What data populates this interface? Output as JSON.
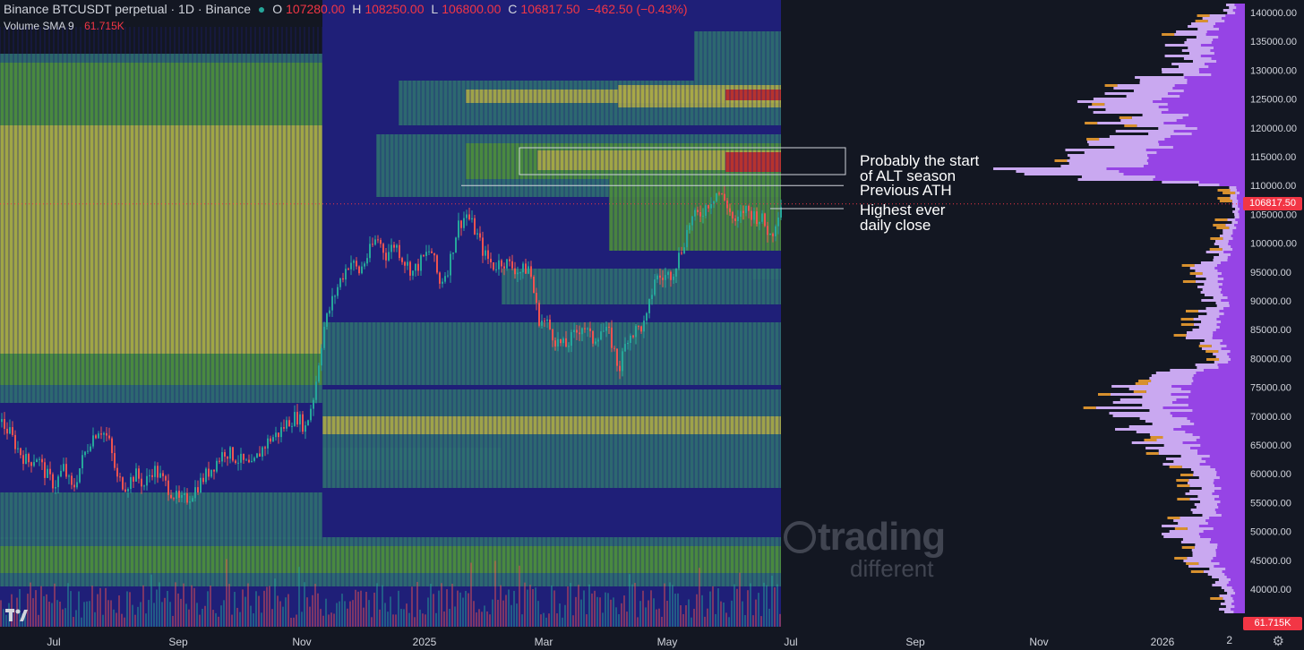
{
  "header": {
    "symbol": "Binance BTCUSDT perpetual · 1D · Binance",
    "o_label": "O",
    "o_value": "107280.00",
    "h_label": "H",
    "h_value": "108250.00",
    "l_label": "L",
    "l_value": "106800.00",
    "c_label": "C",
    "c_value": "106817.50",
    "change": "−462.50 (−0.43%)",
    "status_color": "#26a69a"
  },
  "indicator": {
    "name": "Volume SMA 9",
    "value": "61.715K"
  },
  "price_badge": "106817.50",
  "volume_badge": "61.715K",
  "watermark": {
    "line1": "trading",
    "line2": "different"
  },
  "annotations": {
    "alt_season_line1": "Probably the start",
    "alt_season_line2": "of ALT season",
    "previous_ath": "Previous ATH",
    "daily_close_line1": "Highest ever",
    "daily_close_line2": "daily close"
  },
  "colors": {
    "background": "#131722",
    "heatmap_base": "#1f1f78",
    "heatmap_teal": "#2f6f70",
    "heatmap_green": "#4c8c3c",
    "heatmap_yellow": "#a8a847",
    "heatmap_red": "#b8292c",
    "candle_up": "#26a69a",
    "candle_down": "#ef5350",
    "profile_purple": "#8a2be2",
    "profile_lavender": "#c9a8f0",
    "profile_orange": "#d7902e"
  },
  "x_corner_label": "2",
  "chart_data": {
    "type": "candlestick",
    "title": "Binance BTCUSDT perpetual · 1D · Binance",
    "y_axis": {
      "ylim": [
        36000,
        142000
      ],
      "ticks": [
        "140000.00",
        "135000.00",
        "130000.00",
        "125000.00",
        "120000.00",
        "115000.00",
        "110000.00",
        "105000.00",
        "100000.00",
        "95000.00",
        "90000.00",
        "85000.00",
        "80000.00",
        "75000.00",
        "70000.00",
        "65000.00",
        "60000.00",
        "55000.00",
        "50000.00",
        "45000.00",
        "40000.00"
      ]
    },
    "x_axis": {
      "ticks": [
        "Jul",
        "Sep",
        "Nov",
        "2025",
        "Mar",
        "May",
        "Jul",
        "Sep",
        "Nov",
        "2026"
      ]
    },
    "last_close": 106817.5,
    "levels": [
      {
        "name": "Previous ATH",
        "value": 110000
      },
      {
        "name": "Highest ever daily close",
        "value": 106000
      }
    ],
    "zone": {
      "name": "Probably the start of ALT season",
      "from": 111800,
      "to": 116500
    },
    "price_path": [
      [
        0,
        69000
      ],
      [
        10,
        67000
      ],
      [
        20,
        64000
      ],
      [
        30,
        62000
      ],
      [
        40,
        63000
      ],
      [
        50,
        60000
      ],
      [
        60,
        58000
      ],
      [
        70,
        61000
      ],
      [
        80,
        57000
      ],
      [
        90,
        62000
      ],
      [
        100,
        66000
      ],
      [
        110,
        68000
      ],
      [
        120,
        66000
      ],
      [
        130,
        59000
      ],
      [
        140,
        58000
      ],
      [
        150,
        60000
      ],
      [
        160,
        58000
      ],
      [
        170,
        61000
      ],
      [
        180,
        59000
      ],
      [
        190,
        57000
      ],
      [
        200,
        55000
      ],
      [
        210,
        56000
      ],
      [
        220,
        58000
      ],
      [
        230,
        60000
      ],
      [
        240,
        62000
      ],
      [
        250,
        64000
      ],
      [
        260,
        63000
      ],
      [
        270,
        62000
      ],
      [
        280,
        61000
      ],
      [
        290,
        64000
      ],
      [
        300,
        66000
      ],
      [
        310,
        67000
      ],
      [
        320,
        69000
      ],
      [
        330,
        70000
      ],
      [
        340,
        68000
      ],
      [
        350,
        74000
      ],
      [
        360,
        85000
      ],
      [
        370,
        90000
      ],
      [
        380,
        94000
      ],
      [
        390,
        97000
      ],
      [
        400,
        95000
      ],
      [
        410,
        98000
      ],
      [
        420,
        101000
      ],
      [
        430,
        98000
      ],
      [
        440,
        100000
      ],
      [
        450,
        97000
      ],
      [
        460,
        95000
      ],
      [
        470,
        97000
      ],
      [
        480,
        99000
      ],
      [
        490,
        93000
      ],
      [
        500,
        96000
      ],
      [
        510,
        103000
      ],
      [
        520,
        105000
      ],
      [
        530,
        102000
      ],
      [
        540,
        98000
      ],
      [
        550,
        96000
      ],
      [
        560,
        97000
      ],
      [
        570,
        96000
      ],
      [
        580,
        95000
      ],
      [
        590,
        96000
      ],
      [
        600,
        87000
      ],
      [
        610,
        86000
      ],
      [
        620,
        83000
      ],
      [
        630,
        82000
      ],
      [
        640,
        84000
      ],
      [
        650,
        86000
      ],
      [
        660,
        83000
      ],
      [
        670,
        85000
      ],
      [
        680,
        84000
      ],
      [
        690,
        78000
      ],
      [
        700,
        84000
      ],
      [
        710,
        85000
      ],
      [
        720,
        86000
      ],
      [
        730,
        94000
      ],
      [
        740,
        94000
      ],
      [
        750,
        95000
      ],
      [
        760,
        99000
      ],
      [
        770,
        104000
      ],
      [
        780,
        105000
      ],
      [
        790,
        107000
      ],
      [
        800,
        109000
      ],
      [
        810,
        107000
      ],
      [
        820,
        103000
      ],
      [
        830,
        106000
      ],
      [
        840,
        105000
      ],
      [
        850,
        104000
      ],
      [
        860,
        101000
      ],
      [
        870,
        106800
      ]
    ],
    "volume_profile": [
      {
        "price": 140000,
        "volume": 0.1
      },
      {
        "price": 135000,
        "volume": 0.15
      },
      {
        "price": 130000,
        "volume": 0.17
      },
      {
        "price": 125000,
        "volume": 0.36
      },
      {
        "price": 120000,
        "volume": 0.26
      },
      {
        "price": 115000,
        "volume": 0.38
      },
      {
        "price": 112000,
        "volume": 0.55
      },
      {
        "price": 110000,
        "volume": 0.03
      },
      {
        "price": 105000,
        "volume": 0.03
      },
      {
        "price": 100000,
        "volume": 0.06
      },
      {
        "price": 95000,
        "volume": 0.12
      },
      {
        "price": 90000,
        "volume": 0.08
      },
      {
        "price": 85000,
        "volume": 0.14
      },
      {
        "price": 80000,
        "volume": 0.06
      },
      {
        "price": 75000,
        "volume": 0.3
      },
      {
        "price": 70000,
        "volume": 0.28
      },
      {
        "price": 65000,
        "volume": 0.22
      },
      {
        "price": 60000,
        "volume": 0.14
      },
      {
        "price": 55000,
        "volume": 0.1
      },
      {
        "price": 50000,
        "volume": 0.18
      },
      {
        "price": 45000,
        "volume": 0.12
      },
      {
        "price": 40000,
        "volume": 0.05
      }
    ]
  }
}
